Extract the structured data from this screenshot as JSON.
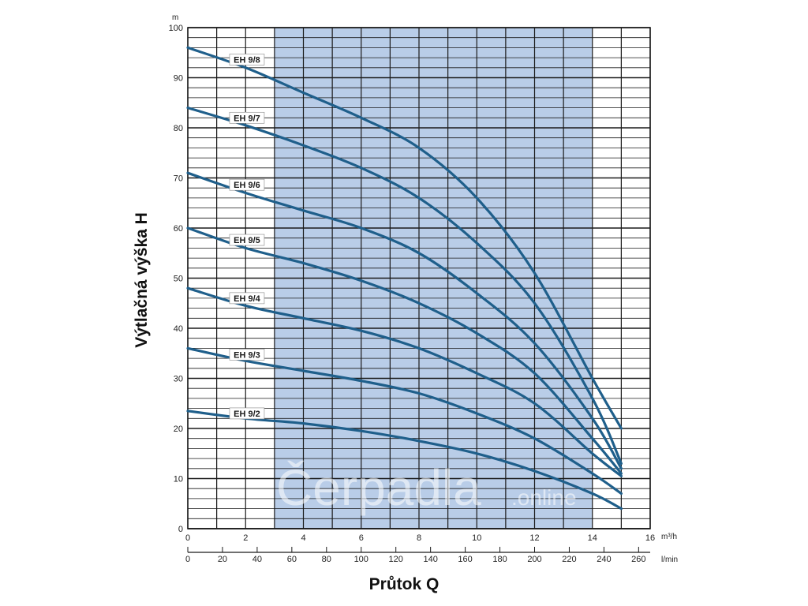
{
  "chart_data": {
    "type": "line",
    "title": "",
    "ylabel": "Výtlačná výška H",
    "xlabel": "Průtok Q",
    "y_unit": "m",
    "x_unit": "m³/h",
    "x2_unit": "l/min",
    "xlim": [
      0,
      16
    ],
    "ylim": [
      0,
      100
    ],
    "x_ticks": [
      0,
      2,
      4,
      6,
      8,
      10,
      12,
      14,
      16
    ],
    "y_ticks": [
      0,
      10,
      20,
      30,
      40,
      50,
      60,
      70,
      80,
      90,
      100
    ],
    "x2_ticks": [
      0,
      20,
      40,
      60,
      80,
      100,
      120,
      140,
      160,
      180,
      200,
      220,
      240,
      260
    ],
    "grid": true,
    "recommended_range": [
      3,
      14
    ],
    "recommended_color": "#b9cde8",
    "series_color": "#1f5f8b",
    "x": [
      0,
      2,
      4,
      6,
      8,
      10,
      12,
      14,
      15
    ],
    "series": [
      {
        "name": "EH 9/8",
        "values": [
          96,
          92,
          87,
          82,
          76,
          66,
          51,
          30,
          20
        ]
      },
      {
        "name": "EH 9/7",
        "values": [
          84,
          80.5,
          76.5,
          72,
          66,
          57,
          45,
          26,
          13
        ]
      },
      {
        "name": "EH 9/6",
        "values": [
          71,
          67,
          63.5,
          60,
          55,
          47,
          37,
          22,
          12
        ]
      },
      {
        "name": "EH 9/5",
        "values": [
          60,
          56,
          53,
          49.5,
          45,
          39,
          31,
          18,
          11
        ]
      },
      {
        "name": "EH 9/4",
        "values": [
          48,
          44.5,
          42,
          39.5,
          36,
          31,
          25,
          15,
          10.5
        ]
      },
      {
        "name": "EH 9/3",
        "values": [
          36,
          33.5,
          31.5,
          29.5,
          27,
          23,
          18,
          11,
          7
        ]
      },
      {
        "name": "EH 9/2",
        "values": [
          23.5,
          22,
          21,
          19.5,
          17.5,
          15,
          11.5,
          7,
          4
        ]
      }
    ],
    "watermark": "Čerpadla",
    "watermark_suffix": ".online"
  }
}
